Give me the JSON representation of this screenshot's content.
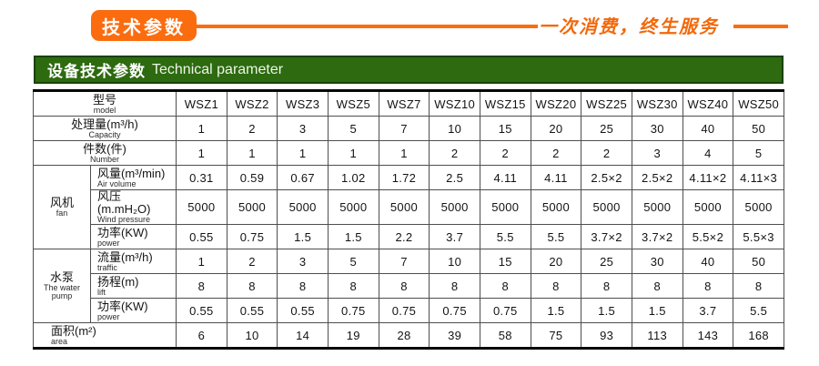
{
  "banner": {
    "badge_label": "技术参数",
    "slogan": "一次消费，终生服务",
    "accent_color": "#fb6c0f"
  },
  "section_header": {
    "title_cn": "设备技术参数",
    "title_en": "Technical parameter",
    "bar_color": "#2d6a10",
    "bar_border_color": "#1a4206"
  },
  "table": {
    "header": {
      "label_cn": "型号",
      "label_en": "model",
      "models": [
        "WSZ1",
        "WSZ2",
        "WSZ3",
        "WSZ5",
        "WSZ7",
        "WSZ10",
        "WSZ15",
        "WSZ20",
        "WSZ25",
        "WSZ30",
        "WSZ40",
        "WSZ50"
      ]
    },
    "sections": [
      {
        "rows": [
          {
            "label_cn": "处理量(m³/h)",
            "label_en": "Capacity",
            "values": [
              "1",
              "2",
              "3",
              "5",
              "7",
              "10",
              "15",
              "20",
              "25",
              "30",
              "40",
              "50"
            ]
          },
          {
            "label_cn": "件数(件)",
            "label_en": "Number",
            "values": [
              "1",
              "1",
              "1",
              "1",
              "1",
              "2",
              "2",
              "2",
              "2",
              "3",
              "4",
              "5"
            ]
          }
        ]
      },
      {
        "group": {
          "cn": "风机",
          "en": "fan"
        },
        "rows": [
          {
            "label_cn": "风量(m³/min)",
            "label_en": "Air volume",
            "values": [
              "0.31",
              "0.59",
              "0.67",
              "1.02",
              "1.72",
              "2.5",
              "4.11",
              "4.11",
              "2.5×2",
              "2.5×2",
              "4.11×2",
              "4.11×3"
            ]
          },
          {
            "label_cn": "风压(m.mH₂O)",
            "label_en": "Wind pressure",
            "values": [
              "5000",
              "5000",
              "5000",
              "5000",
              "5000",
              "5000",
              "5000",
              "5000",
              "5000",
              "5000",
              "5000",
              "5000"
            ]
          },
          {
            "label_cn": "功率(KW)",
            "label_en": "power",
            "values": [
              "0.55",
              "0.75",
              "1.5",
              "1.5",
              "2.2",
              "3.7",
              "5.5",
              "5.5",
              "3.7×2",
              "3.7×2",
              "5.5×2",
              "5.5×3"
            ]
          }
        ]
      },
      {
        "group": {
          "cn": "水泵",
          "en": "The water pump"
        },
        "rows": [
          {
            "label_cn": "流量(m³/h)",
            "label_en": "traffic",
            "values": [
              "1",
              "2",
              "3",
              "5",
              "7",
              "10",
              "15",
              "20",
              "25",
              "30",
              "40",
              "50"
            ]
          },
          {
            "label_cn": "扬程(m)",
            "label_en": "lift",
            "values": [
              "8",
              "8",
              "8",
              "8",
              "8",
              "8",
              "8",
              "8",
              "8",
              "8",
              "8",
              "8"
            ]
          },
          {
            "label_cn": "功率(KW)",
            "label_en": "power",
            "values": [
              "0.55",
              "0.55",
              "0.55",
              "0.75",
              "0.75",
              "0.75",
              "0.75",
              "1.5",
              "1.5",
              "1.5",
              "3.7",
              "5.5"
            ]
          }
        ]
      },
      {
        "rows": [
          {
            "label_cn": "面积(m²)",
            "label_en": "area",
            "align": "left",
            "values": [
              "6",
              "10",
              "14",
              "19",
              "28",
              "39",
              "58",
              "75",
              "93",
              "113",
              "143",
              "168"
            ]
          }
        ]
      }
    ]
  }
}
